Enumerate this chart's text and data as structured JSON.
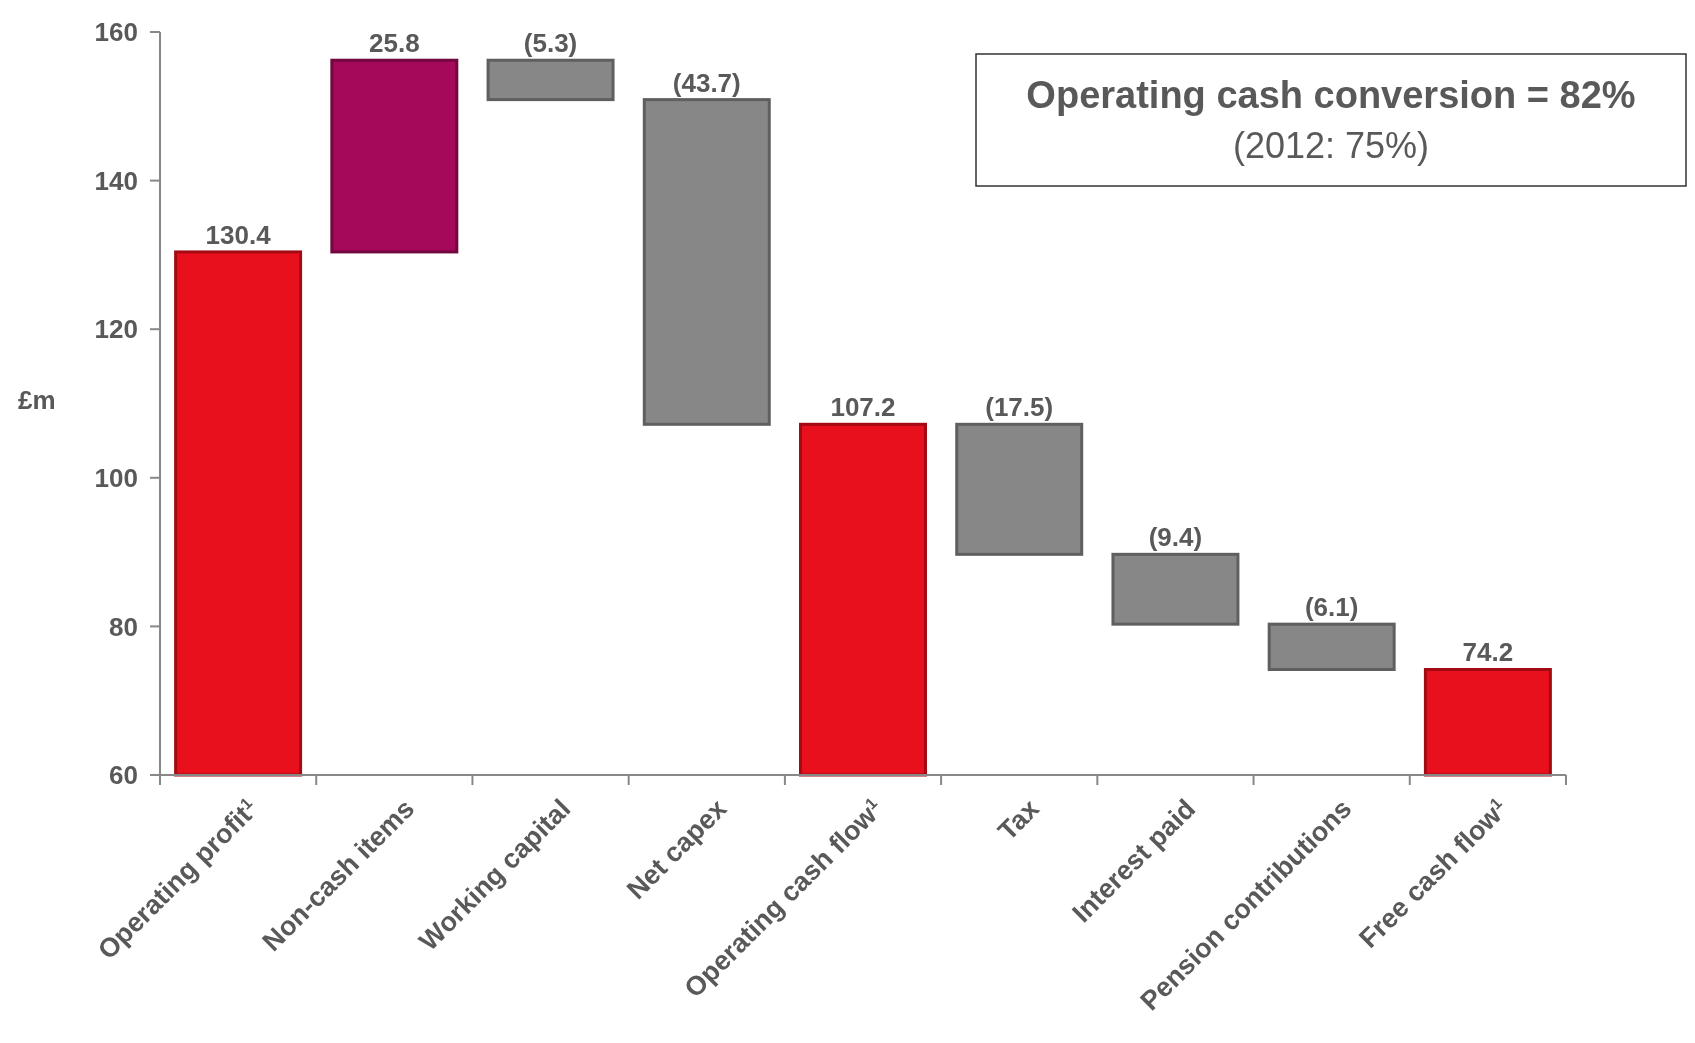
{
  "chart_data": {
    "type": "bar",
    "ylabel": "£m",
    "categories": [
      "Operating  profit$^{1}$",
      "Non-cash items",
      "Working capital",
      "Net capex",
      "Operating cash flow$^{1}$",
      "Tax",
      "Interest paid",
      "Pension contributions",
      "Free cash flow$^{1}$"
    ],
    "values": [
      70.4,
      25.8,
      -5.3,
      -43.7,
      47.2,
      -17.5,
      -9.4,
      -6.1,
      14.2
    ],
    "base": [
      60,
      130.4,
      156.2,
      150.9,
      60,
      107.2,
      89.7,
      80.3,
      60
    ],
    "value_labels": [
      "130.4",
      "25.8",
      "(5.3)",
      "(43.7)",
      "107.2",
      "(17.5)",
      "(9.4)",
      "(6.1)",
      "74.2"
    ],
    "colors": [
      "#e8101c",
      "#a50a5a",
      "#878787",
      "#878787",
      "#e8101c",
      "#878787",
      "#878787",
      "#878787",
      "#e8101c"
    ],
    "ylim": [
      60,
      160
    ],
    "yticks": [
      60,
      80,
      100,
      120,
      140,
      160
    ],
    "annotations": [
      "Operating cash conversion = 82%",
      "(2012: 75%)"
    ]
  }
}
